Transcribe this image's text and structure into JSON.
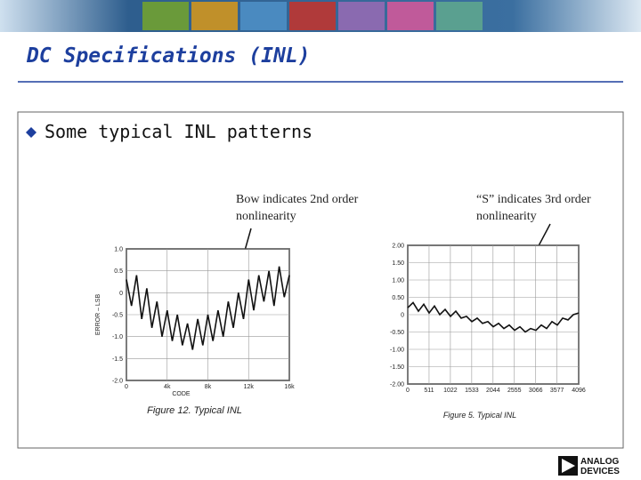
{
  "header": {
    "title": "DC Specifications (INL)"
  },
  "bullet": "Some typical INL patterns",
  "annotations": [
    {
      "lines": [
        "Bow indicates 2nd order",
        "nonlinearity"
      ]
    },
    {
      "lines": [
        "“S” indicates 3rd order",
        "nonlinearity"
      ]
    }
  ],
  "logo": [
    "ANALOG",
    "DEVICES"
  ],
  "chart_data": [
    {
      "type": "line",
      "caption": "Figure 12. Typical INL",
      "xlabel": "CODE",
      "ylabel": "ERROR – LSB",
      "color": "#111111",
      "grid": true,
      "xlim": [
        0,
        16384
      ],
      "ylim": [
        -2,
        1
      ],
      "xticks": [
        0,
        {
          "value": 4096,
          "label": "4k"
        },
        {
          "value": 8192,
          "label": "8k"
        },
        {
          "value": 12288,
          "label": "12k"
        },
        {
          "value": 16384,
          "label": "16k"
        }
      ],
      "yticks": [
        {
          "value": 1,
          "label": "1.0"
        },
        0.5,
        0,
        -0.5,
        {
          "value": -1,
          "label": "-1.0"
        },
        -1.5,
        {
          "value": -2,
          "label": "-2.0"
        }
      ],
      "x": [
        0,
        512,
        1024,
        1536,
        2048,
        2560,
        3072,
        3584,
        4096,
        4608,
        5120,
        5632,
        6144,
        6656,
        7168,
        7680,
        8192,
        8704,
        9216,
        9728,
        10240,
        10752,
        11264,
        11776,
        12288,
        12800,
        13312,
        13824,
        14336,
        14848,
        15360,
        15872,
        16384
      ],
      "values": [
        0.3,
        -0.3,
        0.4,
        -0.6,
        0.1,
        -0.8,
        -0.2,
        -1.0,
        -0.4,
        -1.1,
        -0.5,
        -1.2,
        -0.7,
        -1.3,
        -0.6,
        -1.2,
        -0.5,
        -1.1,
        -0.4,
        -1.0,
        -0.2,
        -0.8,
        0,
        -0.6,
        0.3,
        -0.4,
        0.4,
        -0.2,
        0.5,
        -0.3,
        0.6,
        -0.1,
        0.4
      ]
    },
    {
      "type": "line",
      "caption": "Figure 5. Typical INL",
      "color": "#111111",
      "grid": true,
      "xlim": [
        0,
        4096
      ],
      "ylim": [
        -2,
        2
      ],
      "xticks": [
        0,
        511,
        1022,
        1533,
        2044,
        2555,
        3066,
        3577,
        4096
      ],
      "yticks": [
        {
          "value": 2,
          "label": "2.00"
        },
        {
          "value": 1.5,
          "label": "1.50"
        },
        {
          "value": 1,
          "label": "1.00"
        },
        {
          "value": 0.5,
          "label": "0.50"
        },
        0,
        {
          "value": -0.5,
          "label": "-0.50"
        },
        {
          "value": -1,
          "label": "-1.00"
        },
        {
          "value": -1.5,
          "label": "-1.50"
        },
        {
          "value": -2,
          "label": "-2.00"
        }
      ],
      "x": [
        0,
        128,
        256,
        384,
        512,
        640,
        768,
        896,
        1024,
        1152,
        1280,
        1408,
        1536,
        1664,
        1792,
        1920,
        2048,
        2176,
        2304,
        2432,
        2560,
        2688,
        2816,
        2944,
        3072,
        3200,
        3328,
        3456,
        3584,
        3712,
        3840,
        3968,
        4096
      ],
      "values": [
        0.2,
        0.35,
        0.1,
        0.3,
        0.05,
        0.25,
        0,
        0.15,
        -0.05,
        0.1,
        -0.1,
        -0.05,
        -0.2,
        -0.1,
        -0.25,
        -0.2,
        -0.35,
        -0.25,
        -0.4,
        -0.3,
        -0.45,
        -0.35,
        -0.5,
        -0.4,
        -0.45,
        -0.3,
        -0.4,
        -0.2,
        -0.3,
        -0.1,
        -0.15,
        0,
        0.05
      ]
    }
  ]
}
